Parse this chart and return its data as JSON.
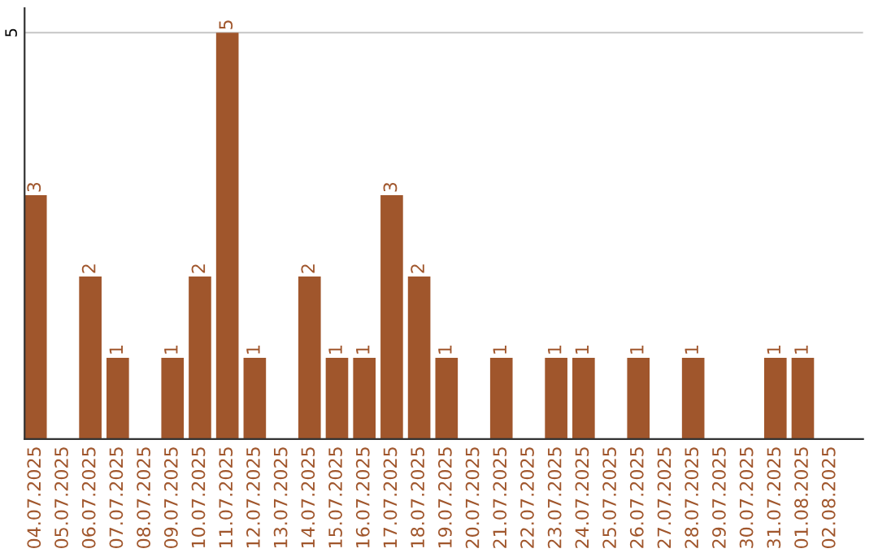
{
  "chart_data": {
    "type": "bar",
    "categories": [
      "04.07.2025",
      "05.07.2025",
      "06.07.2025",
      "07.07.2025",
      "08.07.2025",
      "09.07.2025",
      "10.07.2025",
      "11.07.2025",
      "12.07.2025",
      "13.07.2025",
      "14.07.2025",
      "15.07.2025",
      "16.07.2025",
      "17.07.2025",
      "18.07.2025",
      "19.07.2025",
      "20.07.2025",
      "21.07.2025",
      "22.07.2025",
      "23.07.2025",
      "24.07.2025",
      "25.07.2025",
      "26.07.2025",
      "27.07.2025",
      "28.07.2025",
      "29.07.2025",
      "30.07.2025",
      "31.07.2025",
      "01.08.2025",
      "02.08.2025"
    ],
    "values": [
      3,
      0,
      2,
      1,
      0,
      1,
      2,
      5,
      1,
      0,
      2,
      1,
      1,
      3,
      2,
      1,
      0,
      1,
      0,
      1,
      1,
      0,
      1,
      0,
      1,
      0,
      0,
      1,
      1,
      0
    ],
    "value_labels": [
      "3",
      null,
      "2",
      "1",
      null,
      "1",
      "2",
      "5",
      "1",
      null,
      "2",
      "1",
      "1",
      "3",
      "2",
      "1",
      null,
      "1",
      null,
      "1",
      "1",
      null,
      "1",
      null,
      "1",
      null,
      null,
      "1",
      "1",
      null
    ],
    "color": "#a0562c",
    "ylim": [
      0,
      5.3
    ],
    "yticks": [
      5
    ],
    "grid": "y"
  }
}
